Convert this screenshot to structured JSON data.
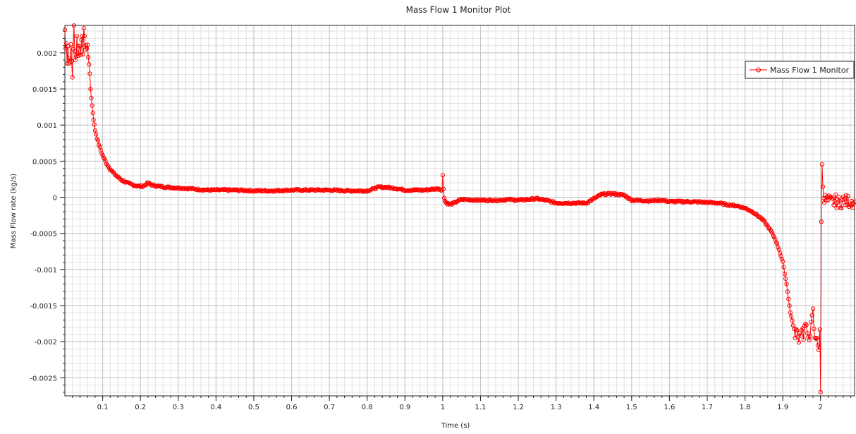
{
  "chart_data": {
    "type": "line",
    "title": "Mass Flow 1 Monitor Plot",
    "xlabel": "Time (s)",
    "ylabel": "Mass Flow  rate (kg/s)",
    "xlim": [
      0.0,
      2.09
    ],
    "ylim": [
      -0.00275,
      0.00238
    ],
    "x_ticks": [
      0.1,
      0.2,
      0.3,
      0.4,
      0.5,
      0.6,
      0.7,
      0.8,
      0.9,
      1,
      1.1,
      1.2,
      1.3,
      1.4,
      1.5,
      1.6,
      1.7,
      1.8,
      1.9,
      2
    ],
    "y_ticks": [
      0.002,
      0.0015,
      0.001,
      0.0005,
      0,
      -0.0005,
      -0.001,
      -0.0015,
      -0.002,
      -0.0025
    ],
    "grid": true,
    "legend": "top-right",
    "colors": {
      "series": "#ff0000"
    },
    "series": [
      {
        "name": "Mass Flow 1 Monitor",
        "marker": "circle",
        "points": [
          [
            0.0,
            0.00232
          ],
          [
            0.002,
            0.00205
          ],
          [
            0.004,
            0.0022
          ],
          [
            0.006,
            0.0019
          ],
          [
            0.008,
            0.0021
          ],
          [
            0.01,
            0.00185
          ],
          [
            0.012,
            0.002
          ],
          [
            0.014,
            0.0018
          ],
          [
            0.016,
            0.0021
          ],
          [
            0.018,
            0.0019
          ],
          [
            0.02,
            0.0017
          ],
          [
            0.022,
            0.002
          ],
          [
            0.024,
            0.00235
          ],
          [
            0.026,
            0.0021
          ],
          [
            0.028,
            0.0019
          ],
          [
            0.03,
            0.002
          ],
          [
            0.032,
            0.0022
          ],
          [
            0.034,
            0.00205
          ],
          [
            0.036,
            0.00195
          ],
          [
            0.038,
            0.0021
          ],
          [
            0.04,
            0.00215
          ],
          [
            0.042,
            0.00205
          ],
          [
            0.044,
            0.0021
          ],
          [
            0.046,
            0.00215
          ],
          [
            0.048,
            0.00205
          ],
          [
            0.05,
            0.00235
          ],
          [
            0.052,
            0.00215
          ],
          [
            0.054,
            0.0021
          ],
          [
            0.056,
            0.00212
          ],
          [
            0.058,
            0.00205
          ],
          [
            0.06,
            0.00208
          ],
          [
            0.062,
            0.00198
          ],
          [
            0.064,
            0.0019
          ],
          [
            0.066,
            0.0017
          ],
          [
            0.068,
            0.0015
          ],
          [
            0.07,
            0.00138
          ],
          [
            0.072,
            0.00127
          ],
          [
            0.074,
            0.00117
          ],
          [
            0.076,
            0.00108
          ],
          [
            0.078,
            0.001
          ],
          [
            0.08,
            0.00093
          ],
          [
            0.085,
            0.00082
          ],
          [
            0.09,
            0.00073
          ],
          [
            0.095,
            0.00065
          ],
          [
            0.1,
            0.00058
          ],
          [
            0.11,
            0.00047
          ],
          [
            0.12,
            0.00039
          ],
          [
            0.13,
            0.00033
          ],
          [
            0.14,
            0.00028
          ],
          [
            0.15,
            0.00024
          ],
          [
            0.16,
            0.00021
          ],
          [
            0.17,
            0.00019
          ],
          [
            0.18,
            0.00017
          ],
          [
            0.19,
            0.00016
          ],
          [
            0.2,
            0.00015
          ],
          [
            0.21,
            0.00016
          ],
          [
            0.22,
            0.0002
          ],
          [
            0.23,
            0.00017
          ],
          [
            0.25,
            0.00015
          ],
          [
            0.27,
            0.00014
          ],
          [
            0.3,
            0.00013
          ],
          [
            0.33,
            0.00012
          ],
          [
            0.35,
            0.00011
          ],
          [
            0.38,
            0.0001
          ],
          [
            0.4,
            0.0001
          ],
          [
            0.45,
            0.0001
          ],
          [
            0.5,
            9e-05
          ],
          [
            0.55,
            9e-05
          ],
          [
            0.6,
            0.0001
          ],
          [
            0.65,
            0.0001
          ],
          [
            0.7,
            0.0001
          ],
          [
            0.75,
            9e-05
          ],
          [
            0.8,
            9e-05
          ],
          [
            0.83,
            0.00014
          ],
          [
            0.85,
            0.00014
          ],
          [
            0.88,
            0.00012
          ],
          [
            0.9,
            0.0001
          ],
          [
            0.95,
            0.0001
          ],
          [
            0.99,
            0.00012
          ],
          [
            0.998,
            0.0001
          ],
          [
            1.0,
            0.0003
          ],
          [
            1.002,
            0.00012
          ],
          [
            1.004,
            0.0
          ],
          [
            1.006,
            -5e-05
          ],
          [
            1.01,
            -8e-05
          ],
          [
            1.02,
            -0.0001
          ],
          [
            1.03,
            -8e-05
          ],
          [
            1.04,
            -5e-05
          ],
          [
            1.05,
            -3e-05
          ],
          [
            1.1,
            -4e-05
          ],
          [
            1.15,
            -4e-05
          ],
          [
            1.17,
            -3e-05
          ],
          [
            1.2,
            -4e-05
          ],
          [
            1.25,
            -2e-05
          ],
          [
            1.28,
            -5e-05
          ],
          [
            1.3,
            -8e-05
          ],
          [
            1.35,
            -8e-05
          ],
          [
            1.38,
            -8e-05
          ],
          [
            1.4,
            -2e-05
          ],
          [
            1.42,
            4e-05
          ],
          [
            1.45,
            5e-05
          ],
          [
            1.48,
            3e-05
          ],
          [
            1.5,
            -4e-05
          ],
          [
            1.55,
            -5e-05
          ],
          [
            1.58,
            -4e-05
          ],
          [
            1.6,
            -6e-05
          ],
          [
            1.65,
            -6e-05
          ],
          [
            1.7,
            -7e-05
          ],
          [
            1.73,
            -8e-05
          ],
          [
            1.75,
            -0.0001
          ],
          [
            1.78,
            -0.00012
          ],
          [
            1.8,
            -0.00015
          ],
          [
            1.82,
            -0.0002
          ],
          [
            1.84,
            -0.00028
          ],
          [
            1.85,
            -0.00033
          ],
          [
            1.86,
            -0.0004
          ],
          [
            1.87,
            -0.00048
          ],
          [
            1.88,
            -0.00058
          ],
          [
            1.89,
            -0.00072
          ],
          [
            1.9,
            -0.0009
          ],
          [
            1.905,
            -0.00105
          ],
          [
            1.91,
            -0.0012
          ],
          [
            1.915,
            -0.0014
          ],
          [
            1.92,
            -0.0016
          ],
          [
            1.925,
            -0.0017
          ],
          [
            1.93,
            -0.0019
          ],
          [
            1.935,
            -0.00185
          ],
          [
            1.94,
            -0.00195
          ],
          [
            1.945,
            -0.0019
          ],
          [
            1.95,
            -0.0018
          ],
          [
            1.955,
            -0.0019
          ],
          [
            1.96,
            -0.00175
          ],
          [
            1.965,
            -0.00195
          ],
          [
            1.97,
            -0.0019
          ],
          [
            1.975,
            -0.0018
          ],
          [
            1.98,
            -0.0016
          ],
          [
            1.985,
            -0.002
          ],
          [
            1.99,
            -0.0019
          ],
          [
            1.995,
            -0.0021
          ],
          [
            1.998,
            -0.0019
          ],
          [
            2.0,
            -0.0027
          ],
          [
            2.002,
            -0.00033
          ],
          [
            2.004,
            0.00045
          ],
          [
            2.006,
            0.00015
          ],
          [
            2.008,
            0.0
          ],
          [
            2.01,
            -3e-05
          ],
          [
            2.02,
            -5e-05
          ],
          [
            2.03,
            -7e-05
          ],
          [
            2.04,
            -5e-05
          ],
          [
            2.05,
            -8e-05
          ],
          [
            2.06,
            -4e-05
          ],
          [
            2.07,
            -6e-05
          ],
          [
            2.08,
            -5e-05
          ],
          [
            2.09,
            -6e-05
          ]
        ]
      }
    ]
  }
}
